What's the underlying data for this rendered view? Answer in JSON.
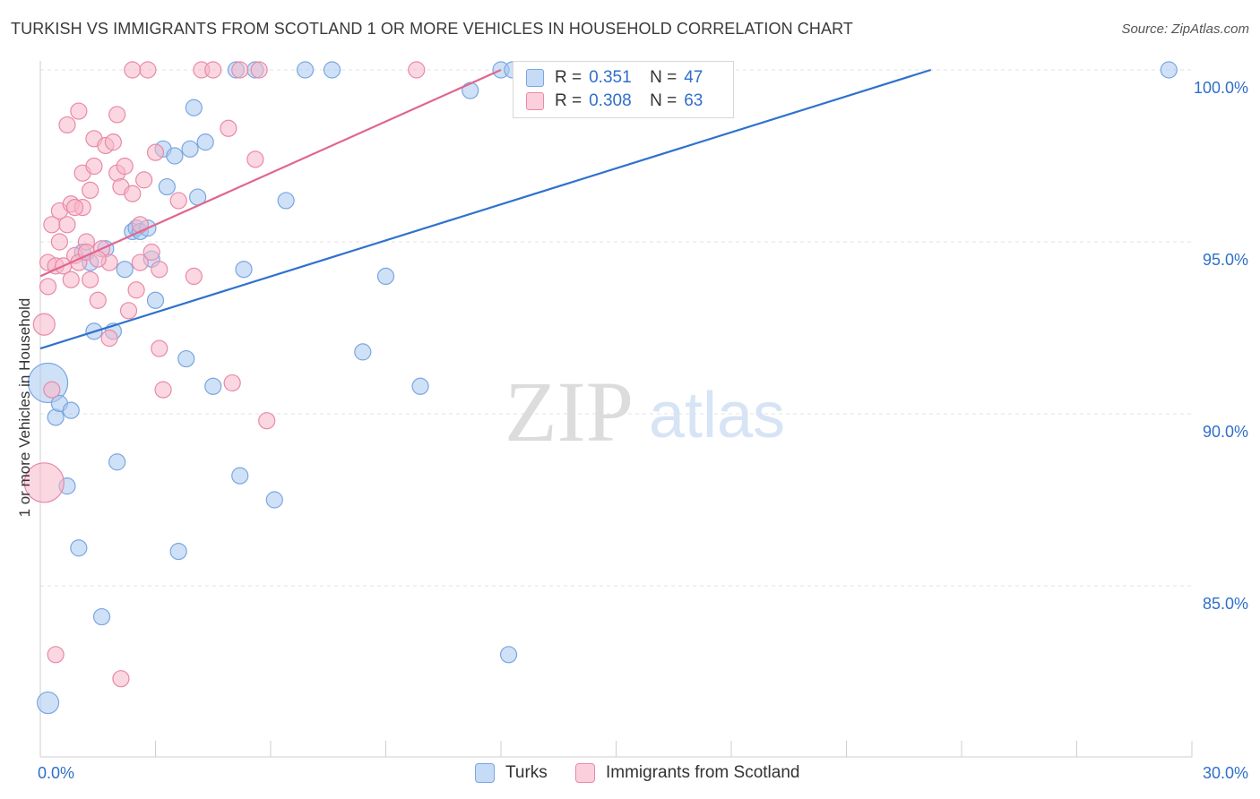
{
  "title": "TURKISH VS IMMIGRANTS FROM SCOTLAND 1 OR MORE VEHICLES IN HOUSEHOLD CORRELATION CHART",
  "source": "Source: ZipAtlas.com",
  "watermark": {
    "zip": "ZIP",
    "atlas": "atlas"
  },
  "colors": {
    "blue_fill": "#a8c8f0",
    "blue_stroke": "#7aa6e0",
    "blue_line": "#2f72cc",
    "pink_fill": "#f7b6c8",
    "pink_stroke": "#e88aa8",
    "pink_line": "#e06690",
    "value_text": "#2f6fc9",
    "grid": "#e3e3e3"
  },
  "legend": {
    "rows": [
      {
        "r_label": "R =",
        "r_value": "0.351",
        "n_label": "N =",
        "n_value": "47"
      },
      {
        "r_label": "R =",
        "r_value": "0.308",
        "n_label": "N =",
        "n_value": "63"
      }
    ]
  },
  "bottom_legend": [
    "Turks",
    "Immigrants from Scotland"
  ],
  "chart_data": {
    "type": "scatter",
    "title": "TURKISH VS IMMIGRANTS FROM SCOTLAND 1 OR MORE VEHICLES IN HOUSEHOLD CORRELATION CHART",
    "xlabel": "",
    "ylabel": "1 or more Vehicles in Household",
    "xlim": [
      0.0,
      30.0
    ],
    "ylim": [
      80.5,
      100.8
    ],
    "x_tick_labels": [
      {
        "value": 0.0,
        "label": "0.0%"
      },
      {
        "value": 30.0,
        "label": "30.0%"
      }
    ],
    "x_minor_ticks": [
      3,
      6,
      9,
      12,
      15,
      18,
      21,
      24,
      27
    ],
    "y_ticks": [
      {
        "value": 85.0,
        "label": "85.0%"
      },
      {
        "value": 90.0,
        "label": "90.0%"
      },
      {
        "value": 95.0,
        "label": "95.0%"
      },
      {
        "value": 100.0,
        "label": "100.0%"
      }
    ],
    "grid": true,
    "series": [
      {
        "name": "Turks",
        "r": 0.351,
        "n": 47,
        "trend": {
          "x": [
            0.0,
            23.2
          ],
          "y": [
            91.9,
            100.0
          ]
        },
        "points": [
          [
            0.2,
            81.6
          ],
          [
            0.2,
            90.9
          ],
          [
            0.4,
            89.9
          ],
          [
            0.5,
            90.3
          ],
          [
            0.7,
            87.9
          ],
          [
            0.8,
            90.1
          ],
          [
            1.0,
            86.1
          ],
          [
            1.1,
            94.7
          ],
          [
            1.3,
            94.4
          ],
          [
            1.4,
            92.4
          ],
          [
            1.6,
            84.1
          ],
          [
            1.7,
            94.8
          ],
          [
            1.9,
            92.4
          ],
          [
            2.0,
            88.6
          ],
          [
            2.2,
            94.2
          ],
          [
            2.4,
            95.3
          ],
          [
            2.5,
            95.4
          ],
          [
            2.6,
            95.3
          ],
          [
            2.8,
            95.4
          ],
          [
            2.9,
            94.5
          ],
          [
            3.0,
            93.3
          ],
          [
            3.2,
            97.7
          ],
          [
            3.3,
            96.6
          ],
          [
            3.5,
            97.5
          ],
          [
            3.6,
            86.0
          ],
          [
            3.8,
            91.6
          ],
          [
            3.9,
            97.7
          ],
          [
            4.0,
            98.9
          ],
          [
            4.1,
            96.3
          ],
          [
            4.3,
            97.9
          ],
          [
            4.5,
            90.8
          ],
          [
            5.1,
            100.0
          ],
          [
            5.2,
            88.2
          ],
          [
            5.3,
            94.2
          ],
          [
            5.6,
            100.0
          ],
          [
            6.1,
            87.5
          ],
          [
            6.4,
            96.2
          ],
          [
            6.9,
            100.0
          ],
          [
            7.6,
            100.0
          ],
          [
            8.4,
            91.8
          ],
          [
            9.0,
            94.0
          ],
          [
            9.9,
            90.8
          ],
          [
            11.2,
            99.4
          ],
          [
            12.0,
            100.0
          ],
          [
            12.2,
            83.0
          ],
          [
            12.3,
            100.0
          ],
          [
            29.4,
            100.0
          ]
        ],
        "point_sizes": {
          "0.2,90.9": "large",
          "0.2,81.6": "medium"
        }
      },
      {
        "name": "Immigrants from Scotland",
        "r": 0.308,
        "n": 63,
        "trend": {
          "x": [
            0.0,
            12.0
          ],
          "y": [
            94.0,
            100.0
          ]
        },
        "points": [
          [
            0.1,
            88.0
          ],
          [
            0.1,
            92.6
          ],
          [
            0.2,
            93.7
          ],
          [
            0.2,
            94.4
          ],
          [
            0.3,
            90.7
          ],
          [
            0.3,
            95.5
          ],
          [
            0.4,
            94.3
          ],
          [
            0.4,
            83.0
          ],
          [
            0.5,
            95.0
          ],
          [
            0.5,
            95.9
          ],
          [
            0.6,
            94.3
          ],
          [
            0.7,
            98.4
          ],
          [
            0.7,
            95.5
          ],
          [
            0.8,
            96.1
          ],
          [
            0.8,
            93.9
          ],
          [
            0.9,
            94.6
          ],
          [
            1.0,
            94.4
          ],
          [
            1.0,
            98.8
          ],
          [
            1.1,
            96.0
          ],
          [
            1.1,
            97.0
          ],
          [
            1.2,
            95.0
          ],
          [
            1.3,
            96.5
          ],
          [
            1.3,
            93.9
          ],
          [
            1.4,
            98.0
          ],
          [
            1.4,
            97.2
          ],
          [
            1.5,
            93.3
          ],
          [
            1.6,
            94.8
          ],
          [
            1.7,
            97.8
          ],
          [
            1.8,
            94.4
          ],
          [
            1.8,
            92.2
          ],
          [
            1.9,
            97.9
          ],
          [
            2.0,
            98.7
          ],
          [
            2.0,
            97.0
          ],
          [
            2.1,
            96.6
          ],
          [
            2.1,
            82.3
          ],
          [
            2.2,
            97.2
          ],
          [
            2.3,
            93.0
          ],
          [
            2.4,
            96.4
          ],
          [
            2.4,
            100.0
          ],
          [
            2.5,
            93.6
          ],
          [
            2.6,
            94.4
          ],
          [
            2.7,
            96.8
          ],
          [
            2.8,
            100.0
          ],
          [
            2.9,
            94.7
          ],
          [
            3.0,
            97.6
          ],
          [
            3.1,
            94.2
          ],
          [
            3.1,
            91.9
          ],
          [
            3.2,
            90.7
          ],
          [
            3.6,
            96.2
          ],
          [
            4.0,
            94.0
          ],
          [
            4.2,
            100.0
          ],
          [
            4.5,
            100.0
          ],
          [
            4.9,
            98.3
          ],
          [
            5.0,
            90.9
          ],
          [
            5.2,
            100.0
          ],
          [
            5.6,
            97.4
          ],
          [
            5.7,
            100.0
          ],
          [
            5.9,
            89.8
          ],
          [
            9.8,
            100.0
          ],
          [
            1.2,
            94.7
          ],
          [
            0.9,
            96.0
          ],
          [
            2.6,
            95.5
          ],
          [
            1.5,
            94.5
          ]
        ],
        "point_sizes": {
          "0.1,88.0": "large",
          "0.1,92.6": "medium"
        }
      }
    ]
  }
}
